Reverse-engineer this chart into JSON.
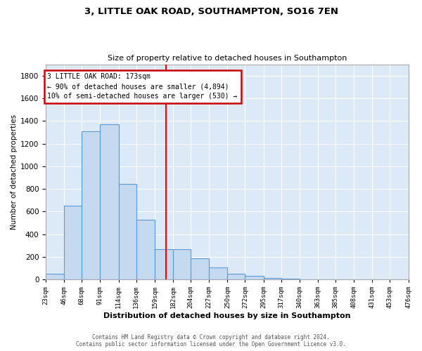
{
  "title": "3, LITTLE OAK ROAD, SOUTHAMPTON, SO16 7EN",
  "subtitle": "Size of property relative to detached houses in Southampton",
  "xlabel": "Distribution of detached houses by size in Southampton",
  "ylabel": "Number of detached properties",
  "bar_color": "#c5d9f0",
  "bar_edge_color": "#5b9bd5",
  "background_color": "#dce9f7",
  "grid_color": "#ffffff",
  "red_line_x": 173,
  "annotation_text": "3 LITTLE OAK ROAD: 173sqm\n← 90% of detached houses are smaller (4,894)\n10% of semi-detached houses are larger (530) →",
  "annotation_box_color": "#ffffff",
  "annotation_box_edge": "#cc0000",
  "footer_line1": "Contains HM Land Registry data © Crown copyright and database right 2024.",
  "footer_line2": "Contains public sector information licensed under the Open Government Licence v3.0.",
  "bin_edges": [
    23,
    46,
    68,
    91,
    114,
    136,
    159,
    182,
    204,
    227,
    250,
    272,
    295,
    317,
    340,
    363,
    385,
    408,
    431,
    453,
    476
  ],
  "bar_heights": [
    50,
    650,
    1310,
    1370,
    845,
    530,
    270,
    270,
    185,
    105,
    50,
    30,
    15,
    5,
    2,
    1,
    1,
    0,
    0,
    0
  ],
  "ylim": [
    0,
    1900
  ],
  "xlim": [
    23,
    476
  ]
}
